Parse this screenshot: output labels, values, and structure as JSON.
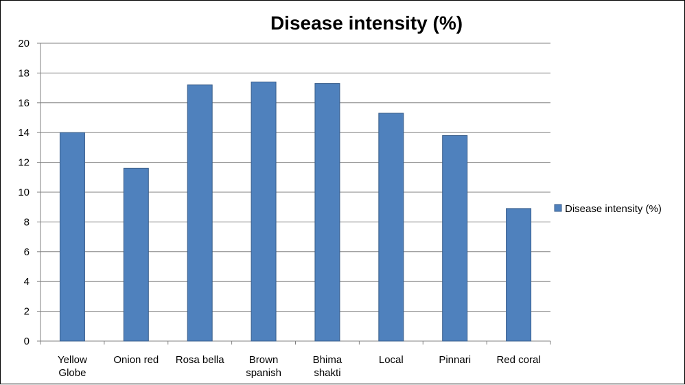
{
  "chart_data": {
    "type": "bar",
    "title": "Disease intensity (%)",
    "xlabel": "",
    "ylabel": "",
    "categories": [
      "Yellow Globe",
      "Onion red",
      "Rosa bella",
      "Brown spanish",
      "Bhima shakti",
      "Local",
      "Pinnari",
      "Red coral"
    ],
    "category_lines": [
      [
        "Yellow",
        "Globe"
      ],
      [
        "Onion red"
      ],
      [
        "Rosa bella"
      ],
      [
        "Brown",
        "spanish"
      ],
      [
        "Bhima",
        "shakti"
      ],
      [
        "Local"
      ],
      [
        "Pinnari"
      ],
      [
        "Red coral"
      ]
    ],
    "series": [
      {
        "name": "Disease intensity (%)",
        "values": [
          14.0,
          11.6,
          17.2,
          17.4,
          17.3,
          15.3,
          13.8,
          8.9
        ]
      }
    ],
    "ylim": [
      0,
      20
    ],
    "yticks": [
      "0",
      "2",
      "4",
      "6",
      "8",
      "10",
      "12",
      "14",
      "16",
      "18",
      "20"
    ],
    "grid": true,
    "legend_position": "right",
    "colors": {
      "bar_fill": "#4f81bd",
      "bar_stroke": "#385d8a",
      "grid": "#808080",
      "axis": "#808080"
    }
  }
}
